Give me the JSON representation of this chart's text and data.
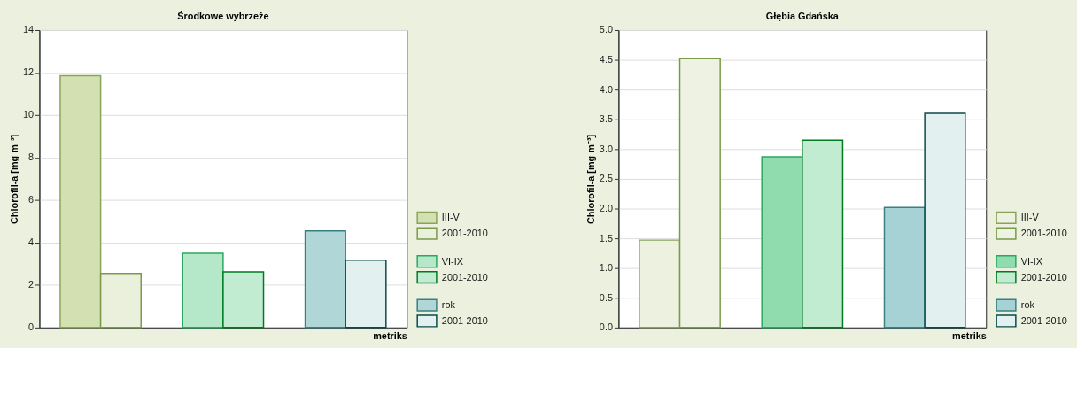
{
  "chart_data": [
    {
      "type": "bar",
      "title": "Środkowe wybrzeże",
      "xlabel": "metriks",
      "ylabel": "Chlorofil-a [mg m⁻³]",
      "categories": [
        null,
        null,
        null
      ],
      "ylim": [
        0,
        14
      ],
      "yticks": [
        0,
        2,
        4,
        6,
        8,
        10,
        12,
        14
      ],
      "grid": "y",
      "legend": "bottom right",
      "series": [
        {
          "name": "III-V",
          "color": "#d3e1b2",
          "values": [
            11.85,
            null,
            null
          ]
        },
        {
          "name": "2001-2010",
          "color": "#eaf0dc",
          "values": [
            2.55,
            null,
            null
          ]
        },
        {
          "name": "VI-IX",
          "color": "#b4e8c8",
          "values": [
            null,
            3.5,
            null
          ]
        },
        {
          "name": "2001-2010",
          "color": "#c2ecd2",
          "values": [
            null,
            2.62,
            null
          ]
        },
        {
          "name": "rok",
          "color": "#b0d6d8",
          "values": [
            null,
            null,
            4.55
          ]
        },
        {
          "name": "2001-2010",
          "color": "#e2f0f0",
          "values": [
            null,
            null,
            3.17
          ]
        }
      ]
    },
    {
      "type": "bar",
      "title": "Głębia Gdańska",
      "xlabel": "metriks",
      "ylabel": "Chlorofil-a [mg m⁻³]",
      "categories": [
        null,
        null,
        null
      ],
      "ylim": [
        0,
        5
      ],
      "yticks": [
        {
          "value": 0,
          "label": "0.0"
        },
        0.5,
        {
          "value": 1,
          "label": "1.0"
        },
        1.5,
        {
          "value": 2,
          "label": "2.0"
        },
        2.5,
        {
          "value": 3,
          "label": "3.0"
        },
        3.5,
        {
          "value": 4,
          "label": "4.0"
        },
        4.5,
        {
          "value": 5,
          "label": "5.0"
        }
      ],
      "grid": "y",
      "legend": "bottom right",
      "series": [
        {
          "name": "III-V",
          "color": "#ecf1e0",
          "values": [
            1.47,
            null,
            null
          ]
        },
        {
          "name": "2001-2010",
          "color": "#eef2e2",
          "values": [
            4.52,
            null,
            null
          ]
        },
        {
          "name": "VI-IX",
          "color": "#90dcae",
          "values": [
            null,
            2.87,
            null
          ]
        },
        {
          "name": "2001-2010",
          "color": "#c2ecd2",
          "values": [
            null,
            3.15,
            null
          ]
        },
        {
          "name": "rok",
          "color": "#a6d2d6",
          "values": [
            null,
            null,
            2.02
          ]
        },
        {
          "name": "2001-2010",
          "color": "#e2f0f0",
          "values": [
            null,
            null,
            3.6
          ]
        }
      ]
    }
  ]
}
